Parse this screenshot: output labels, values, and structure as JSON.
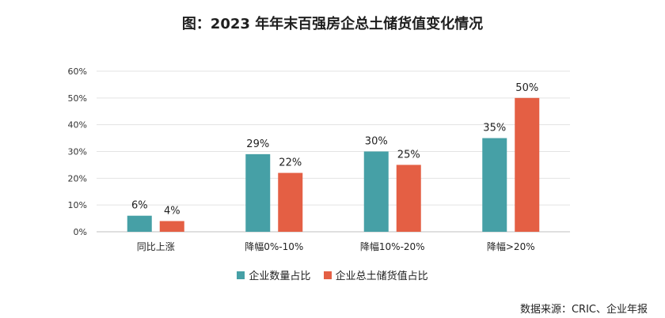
{
  "chart_data": {
    "type": "bar",
    "title": "图：2023 年年末百强房企总土储货值变化情况",
    "categories": [
      "同比上涨",
      "降幅0%-10%",
      "降幅10%-20%",
      "降幅>20%"
    ],
    "series": [
      {
        "name": "企业数量占比",
        "values": [
          6,
          29,
          30,
          35
        ],
        "labels": [
          "6%",
          "29%",
          "30%",
          "35%"
        ],
        "color": "#46A0A6"
      },
      {
        "name": "企业总土储货值占比",
        "values": [
          4,
          22,
          25,
          50
        ],
        "labels": [
          "4%",
          "22%",
          "25%",
          "50%"
        ],
        "color": "#E45F44"
      }
    ],
    "y_ticks": [
      "0%",
      "10%",
      "20%",
      "30%",
      "40%",
      "50%",
      "60%"
    ],
    "ylim": [
      0,
      60
    ],
    "grid": true,
    "legend_position": "bottom"
  },
  "source_note": "数据来源：CRIC、企业年报"
}
